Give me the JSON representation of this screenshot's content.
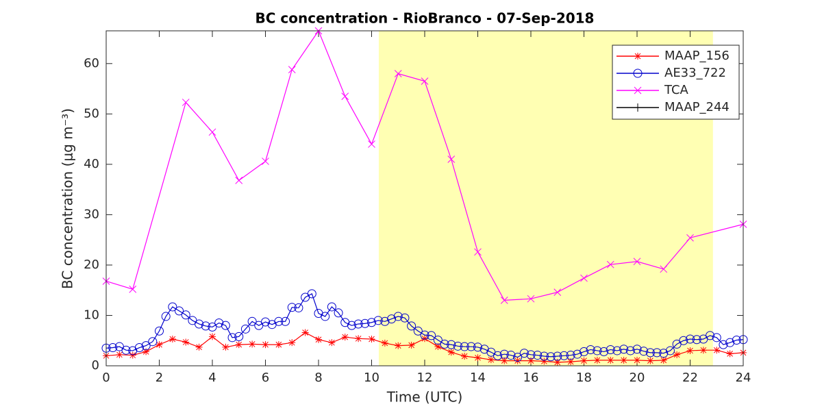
{
  "chart_data": {
    "type": "line",
    "title": "BC concentration  - RioBranco - 07-Sep-2018",
    "xlabel": "Time (UTC)",
    "ylabel": "BC concentration (μg m⁻³)",
    "xlim": [
      0,
      24
    ],
    "xticks": [
      0,
      2,
      4,
      6,
      8,
      10,
      12,
      14,
      16,
      18,
      20,
      22,
      24
    ],
    "ylim": [
      0,
      66.5
    ],
    "yticks": [
      0,
      10,
      20,
      30,
      40,
      50,
      60
    ],
    "grid": false,
    "legend": "northeast",
    "shaded_x": [
      10.27,
      22.86
    ],
    "shade_color": "#ffffb3",
    "series": [
      {
        "name": "MAAP_156",
        "color": "#ff0000",
        "marker": "star",
        "x": [
          0,
          0.5,
          1,
          1.5,
          2,
          2.5,
          3,
          3.5,
          4,
          4.5,
          5,
          5.5,
          6,
          6.5,
          7,
          7.5,
          8,
          8.5,
          9,
          9.5,
          10,
          10.5,
          11,
          11.5,
          12,
          12.5,
          13,
          13.5,
          14,
          14.5,
          15,
          15.5,
          16,
          16.5,
          17,
          17.5,
          18,
          18.5,
          19,
          19.5,
          20,
          20.5,
          21,
          21.5,
          22,
          22.5,
          23,
          23.5,
          24
        ],
        "values": [
          2.0,
          2.2,
          2.1,
          2.8,
          4.2,
          5.3,
          4.7,
          3.7,
          5.8,
          3.7,
          4.2,
          4.3,
          4.2,
          4.2,
          4.6,
          6.6,
          5.2,
          4.6,
          5.7,
          5.4,
          5.3,
          4.5,
          4.0,
          4.1,
          5.4,
          3.8,
          2.7,
          1.9,
          1.6,
          1.2,
          1.0,
          1.0,
          1.0,
          0.9,
          0.7,
          0.8,
          1.0,
          1.1,
          1.1,
          1.1,
          1.1,
          1.0,
          1.1,
          2.2,
          3.0,
          3.1,
          3.1,
          2.4,
          2.6
        ]
      },
      {
        "name": "AE33_722",
        "color": "#0000cc",
        "marker": "circle",
        "x": [
          0,
          0.25,
          0.5,
          0.75,
          1,
          1.25,
          1.5,
          1.75,
          2,
          2.25,
          2.5,
          2.75,
          3,
          3.25,
          3.5,
          3.75,
          4,
          4.25,
          4.5,
          4.75,
          5,
          5.25,
          5.5,
          5.75,
          6,
          6.25,
          6.5,
          6.75,
          7,
          7.25,
          7.5,
          7.75,
          8,
          8.25,
          8.5,
          8.75,
          9,
          9.25,
          9.5,
          9.75,
          10,
          10.25,
          10.5,
          10.75,
          11,
          11.25,
          11.5,
          11.75,
          12,
          12.25,
          12.5,
          12.75,
          13,
          13.25,
          13.5,
          13.75,
          14,
          14.25,
          14.5,
          14.75,
          15,
          15.25,
          15.5,
          15.75,
          16,
          16.25,
          16.5,
          16.75,
          17,
          17.25,
          17.5,
          17.75,
          18,
          18.25,
          18.5,
          18.75,
          19,
          19.25,
          19.5,
          19.75,
          20,
          20.25,
          20.5,
          20.75,
          21,
          21.25,
          21.5,
          21.75,
          22,
          22.25,
          22.5,
          22.75,
          23,
          23.25,
          23.5,
          23.75,
          24
        ],
        "values": [
          3.5,
          3.6,
          3.8,
          3.1,
          3.0,
          3.6,
          4.0,
          4.8,
          6.9,
          9.8,
          11.7,
          10.9,
          10.1,
          9.0,
          8.3,
          7.9,
          7.7,
          8.5,
          8.0,
          5.6,
          5.8,
          7.3,
          8.8,
          8.0,
          8.7,
          8.2,
          8.8,
          8.8,
          11.6,
          11.5,
          13.6,
          14.3,
          10.4,
          9.8,
          11.7,
          10.5,
          8.6,
          8.0,
          8.3,
          8.4,
          8.6,
          9.0,
          8.8,
          9.3,
          9.8,
          9.5,
          7.9,
          6.9,
          6.1,
          6.0,
          5.1,
          4.3,
          4.2,
          3.9,
          3.8,
          3.8,
          3.7,
          3.3,
          2.7,
          2.0,
          2.3,
          2.1,
          1.7,
          2.5,
          2.2,
          2.1,
          1.9,
          1.8,
          1.9,
          2.0,
          2.1,
          2.3,
          2.8,
          3.2,
          3.0,
          2.8,
          3.2,
          3.0,
          3.3,
          3.0,
          3.3,
          2.9,
          2.6,
          2.6,
          2.5,
          3.0,
          4.3,
          5.0,
          5.3,
          5.2,
          5.3,
          6.0,
          5.6,
          4.2,
          4.6,
          5.1,
          5.2
        ]
      },
      {
        "name": "TCA",
        "color": "#ff00ff",
        "marker": "x",
        "x": [
          0,
          1,
          3,
          4,
          5,
          6,
          7,
          8,
          9,
          10,
          11,
          12,
          13,
          14,
          15,
          16,
          17,
          18,
          19,
          20,
          21,
          22,
          24
        ],
        "values": [
          16.8,
          15.2,
          52.3,
          46.4,
          36.8,
          40.6,
          58.8,
          66.5,
          53.5,
          44.0,
          58.0,
          56.5,
          41.0,
          22.6,
          13.0,
          13.3,
          14.6,
          17.4,
          20.1,
          20.7,
          19.2,
          25.4,
          28.1
        ]
      },
      {
        "name": "MAAP_244",
        "color": "#000000",
        "marker": "plus",
        "x": [],
        "values": []
      }
    ]
  }
}
